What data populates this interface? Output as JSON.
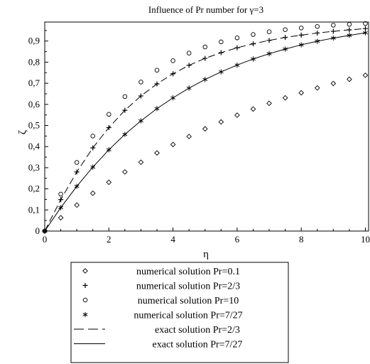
{
  "chart_data": {
    "type": "scatter",
    "title": "Influence of Pr number for γ=3",
    "xlabel": "η",
    "ylabel": "ζ",
    "xlim": [
      0,
      10.1
    ],
    "ylim": [
      0,
      0.99
    ],
    "xticks": [
      0,
      2,
      4,
      6,
      8,
      10
    ],
    "yticks": [
      0,
      0.1,
      0.2,
      0.3,
      0.4,
      0.5,
      0.6,
      0.7,
      0.8,
      0.9
    ],
    "ytick_labels": [
      "0",
      "0,1",
      "0,2",
      "0,3",
      "0,4",
      "0,5",
      "0,6",
      "0,7",
      "0,8",
      "0,9"
    ],
    "xtick_labels": [
      "0",
      "2",
      "4",
      "6",
      "8",
      "10"
    ],
    "grid": false,
    "legend_position": "bottom",
    "series": [
      {
        "name": "numerical solution  Pr=0.1",
        "marker": "diamond",
        "x": [
          0,
          0.5,
          1,
          1.5,
          2,
          2.5,
          3,
          3.5,
          4,
          4.5,
          5,
          5.5,
          6,
          6.5,
          7,
          7.5,
          8,
          8.5,
          9,
          9.5,
          10
        ],
        "y": [
          0,
          0.063,
          0.123,
          0.179,
          0.231,
          0.28,
          0.326,
          0.37,
          0.41,
          0.448,
          0.484,
          0.517,
          0.549,
          0.578,
          0.605,
          0.631,
          0.655,
          0.678,
          0.699,
          0.719,
          0.738
        ]
      },
      {
        "name": "numerical solution  Pr=2/3",
        "marker": "plus",
        "x": [
          0,
          0.5,
          1,
          1.5,
          2,
          2.5,
          3,
          3.5,
          4,
          4.5,
          5,
          5.5,
          6,
          6.5,
          7,
          7.5,
          8,
          8.5,
          9,
          9.5,
          10
        ],
        "y": [
          0,
          0.149,
          0.28,
          0.394,
          0.49,
          0.572,
          0.64,
          0.697,
          0.745,
          0.785,
          0.818,
          0.845,
          0.868,
          0.887,
          0.903,
          0.917,
          0.928,
          0.938,
          0.946,
          0.953,
          0.959
        ]
      },
      {
        "name": "numerical solution  Pr=10",
        "marker": "circle",
        "x": [
          0,
          0.5,
          1,
          1.5,
          2,
          2.5,
          3,
          3.5,
          4,
          4.5,
          5,
          5.5,
          6,
          6.5,
          7,
          7.5,
          8,
          8.5,
          9,
          9.5,
          10
        ],
        "y": [
          0,
          0.175,
          0.325,
          0.45,
          0.553,
          0.637,
          0.706,
          0.762,
          0.807,
          0.843,
          0.872,
          0.896,
          0.915,
          0.931,
          0.944,
          0.954,
          0.962,
          0.969,
          0.975,
          0.979,
          0.983
        ]
      },
      {
        "name": "numerical solution  Pr=7/27",
        "marker": "star",
        "x": [
          0,
          0.5,
          1,
          1.5,
          2,
          2.5,
          3,
          3.5,
          4,
          4.5,
          5,
          5.5,
          6,
          6.5,
          7,
          7.5,
          8,
          8.5,
          9,
          9.5,
          10
        ],
        "y": [
          0,
          0.111,
          0.212,
          0.303,
          0.385,
          0.458,
          0.522,
          0.58,
          0.631,
          0.677,
          0.718,
          0.754,
          0.786,
          0.815,
          0.84,
          0.862,
          0.882,
          0.899,
          0.914,
          0.927,
          0.939
        ]
      },
      {
        "name": "exact solution  Pr=2/3",
        "line": "dashed",
        "x": [
          0,
          0.5,
          1,
          1.5,
          2,
          2.5,
          3,
          3.5,
          4,
          4.5,
          5,
          5.5,
          6,
          6.5,
          7,
          7.5,
          8,
          8.5,
          9,
          9.5,
          10
        ],
        "y": [
          0,
          0.149,
          0.28,
          0.394,
          0.49,
          0.572,
          0.64,
          0.697,
          0.745,
          0.785,
          0.818,
          0.845,
          0.868,
          0.887,
          0.903,
          0.917,
          0.928,
          0.938,
          0.946,
          0.953,
          0.959
        ]
      },
      {
        "name": "exact solution  Pr=7/27",
        "line": "solid",
        "x": [
          0,
          0.5,
          1,
          1.5,
          2,
          2.5,
          3,
          3.5,
          4,
          4.5,
          5,
          5.5,
          6,
          6.5,
          7,
          7.5,
          8,
          8.5,
          9,
          9.5,
          10
        ],
        "y": [
          0,
          0.111,
          0.212,
          0.303,
          0.385,
          0.458,
          0.522,
          0.58,
          0.631,
          0.677,
          0.718,
          0.754,
          0.786,
          0.815,
          0.84,
          0.862,
          0.882,
          0.899,
          0.914,
          0.927,
          0.939
        ]
      }
    ],
    "legend": [
      {
        "label": "numerical solution  Pr=0.1",
        "symbol": "diamond"
      },
      {
        "label": "numerical solution  Pr=2/3",
        "symbol": "plus"
      },
      {
        "label": "numerical solution  Pr=10",
        "symbol": "circle"
      },
      {
        "label": "numerical solution  Pr=7/27",
        "symbol": "star"
      },
      {
        "label": "exact solution  Pr=2/3",
        "symbol": "dashed"
      },
      {
        "label": "exact solution  Pr=7/27",
        "symbol": "solid"
      }
    ]
  }
}
